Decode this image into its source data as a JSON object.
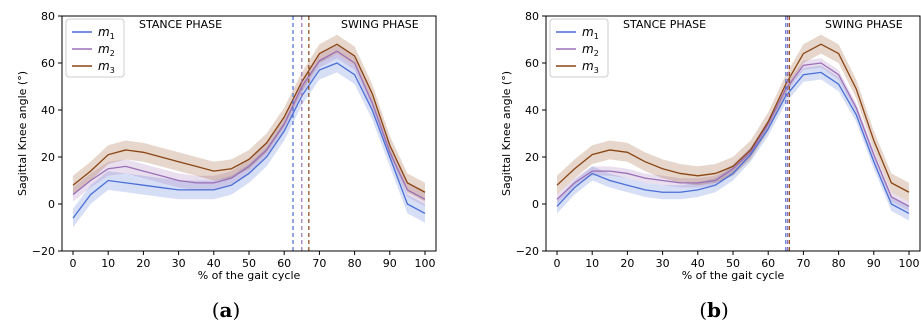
{
  "chart_data": [
    {
      "panel": "(a)",
      "type": "line",
      "ylabel": "Sagittal Knee angle (°)",
      "xlabel": "% of the gait cycle",
      "xlim": [
        0,
        100
      ],
      "ylim": [
        -20,
        80
      ],
      "xticks": [
        0,
        10,
        20,
        30,
        40,
        50,
        60,
        70,
        80,
        90,
        100
      ],
      "yticks": [
        -20,
        0,
        20,
        40,
        60,
        80
      ],
      "annotations": [
        "STANCE PHASE",
        "SWING PHASE"
      ],
      "legend": {
        "placement": "top-left",
        "entries": [
          "m",
          "m",
          "m"
        ],
        "subscripts": [
          "1",
          "2",
          "3"
        ]
      },
      "grid": false,
      "x": [
        0,
        5,
        10,
        15,
        20,
        25,
        30,
        35,
        40,
        45,
        50,
        55,
        60,
        65,
        70,
        75,
        80,
        85,
        90,
        95,
        100
      ],
      "series": [
        {
          "name": "m1",
          "color": "#4a6fd6",
          "band": 4,
          "values": [
            -6,
            4,
            10,
            9,
            8,
            7,
            6,
            6,
            6,
            8,
            13,
            20,
            31,
            46,
            57,
            60,
            55,
            40,
            20,
            0,
            -4
          ],
          "toe_off": 62.5
        },
        {
          "name": "m2",
          "color": "#9b6fb8",
          "band": 3,
          "values": [
            4,
            10,
            15,
            16,
            14,
            12,
            10,
            9,
            9,
            11,
            16,
            23,
            34,
            50,
            61,
            65,
            60,
            43,
            22,
            6,
            2
          ],
          "toe_off": 65
        },
        {
          "name": "m3",
          "color": "#8b4513",
          "band": 4,
          "values": [
            8,
            14,
            21,
            23,
            22,
            20,
            18,
            16,
            14,
            15,
            19,
            26,
            37,
            52,
            64,
            68,
            63,
            47,
            25,
            9,
            5
          ],
          "toe_off": 67
        }
      ]
    },
    {
      "panel": "(b)",
      "type": "line",
      "ylabel": "Sagittal Knee angle (°)",
      "xlabel": "% of the gait cycle",
      "xlim": [
        0,
        100
      ],
      "ylim": [
        -20,
        80
      ],
      "xticks": [
        0,
        10,
        20,
        30,
        40,
        50,
        60,
        70,
        80,
        90,
        100
      ],
      "yticks": [
        -20,
        0,
        20,
        40,
        60,
        80
      ],
      "annotations": [
        "STANCE PHASE",
        "SWING PHASE"
      ],
      "legend": {
        "placement": "top-left",
        "entries": [
          "m",
          "m",
          "m"
        ],
        "subscripts": [
          "1",
          "2",
          "3"
        ]
      },
      "grid": false,
      "x": [
        0,
        5,
        10,
        15,
        20,
        25,
        30,
        35,
        40,
        45,
        50,
        55,
        60,
        65,
        70,
        75,
        80,
        85,
        90,
        95,
        100
      ],
      "series": [
        {
          "name": "m1",
          "color": "#4a6fd6",
          "band": 3,
          "values": [
            -1,
            7,
            13,
            10,
            8,
            6,
            5,
            5,
            6,
            8,
            13,
            21,
            32,
            46,
            55,
            56,
            51,
            38,
            18,
            0,
            -4
          ],
          "toe_off": 65
        },
        {
          "name": "m2",
          "color": "#9b6fb8",
          "band": 2,
          "values": [
            2,
            9,
            14,
            14,
            13,
            11,
            10,
            9,
            9,
            10,
            15,
            22,
            34,
            49,
            59,
            60,
            55,
            41,
            21,
            3,
            -1
          ],
          "toe_off": 65.5
        },
        {
          "name": "m3",
          "color": "#8b4513",
          "band": 4,
          "values": [
            8,
            15,
            21,
            23,
            22,
            18,
            15,
            13,
            12,
            13,
            16,
            23,
            35,
            51,
            64,
            68,
            64,
            49,
            27,
            9,
            5
          ],
          "toe_off": 66
        }
      ]
    }
  ]
}
